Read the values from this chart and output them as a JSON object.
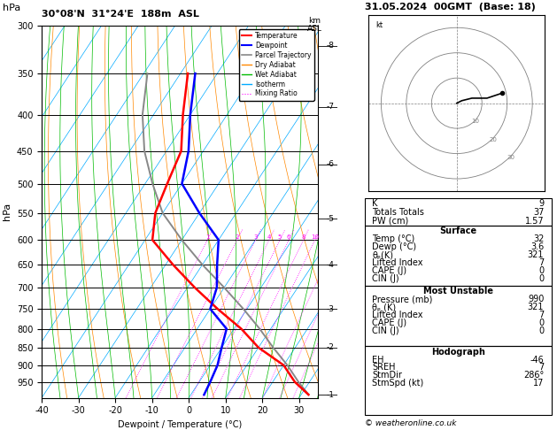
{
  "title_left": "30°08'N  31°24'E  188m  ASL",
  "title_right": "31.05.2024  00GMT  (Base: 18)",
  "hpa_label": "hPa",
  "xlabel": "Dewpoint / Temperature (°C)",
  "pressure_ticks": [
    300,
    350,
    400,
    450,
    500,
    550,
    600,
    650,
    700,
    750,
    800,
    850,
    900,
    950
  ],
  "temp_xlim": [
    -40,
    35
  ],
  "temp_xticks": [
    -40,
    -30,
    -20,
    -10,
    0,
    10,
    20,
    30
  ],
  "km_ticks": [
    1,
    2,
    3,
    4,
    5,
    6,
    7,
    8
  ],
  "km_pressures": [
    990,
    850,
    750,
    650,
    560,
    470,
    390,
    320
  ],
  "bg_color": "#ffffff",
  "temp_profile_T": [
    32,
    26,
    20,
    10,
    2,
    -8,
    -18,
    -28,
    -38,
    -42,
    -44,
    -46,
    -52,
    -58
  ],
  "temp_profile_P": [
    990,
    950,
    900,
    850,
    800,
    750,
    700,
    650,
    600,
    550,
    500,
    450,
    400,
    350
  ],
  "dewp_profile_T": [
    3.6,
    3,
    2,
    0,
    -2,
    -10,
    -12,
    -16,
    -20,
    -30,
    -40,
    -44,
    -50,
    -56
  ],
  "dewp_profile_P": [
    990,
    950,
    900,
    850,
    800,
    750,
    700,
    650,
    600,
    550,
    500,
    450,
    400,
    350
  ],
  "parcel_T": [
    32,
    27,
    21,
    14,
    7,
    -1,
    -10,
    -20,
    -30,
    -40,
    -48,
    -56,
    -63,
    -69
  ],
  "parcel_P": [
    990,
    950,
    900,
    850,
    800,
    750,
    700,
    650,
    600,
    550,
    500,
    450,
    400,
    350
  ],
  "temp_color": "#ff0000",
  "dewp_color": "#0000ff",
  "parcel_color": "#888888",
  "isotherm_color": "#00aaff",
  "dry_adiabat_color": "#ff8800",
  "wet_adiabat_color": "#00bb00",
  "mixing_ratio_color": "#ff00ff",
  "mixing_ratio_values": [
    1,
    2,
    3,
    4,
    5,
    6,
    8,
    10,
    15,
    20,
    25
  ],
  "stats_K": 9,
  "stats_TT": 37,
  "stats_PW": 1.57,
  "surf_temp": 32,
  "surf_dewp": 3.6,
  "surf_theta_e": 321,
  "surf_li": 7,
  "surf_cape": 0,
  "surf_cin": 0,
  "mu_pressure": 990,
  "mu_theta_e": 321,
  "mu_li": 7,
  "mu_cape": 0,
  "mu_cin": 0,
  "hodo_EH": -46,
  "hodo_SREH": 7,
  "hodo_StmDir": 286,
  "hodo_StmSpd": 17,
  "copyright": "© weatheronline.co.uk"
}
